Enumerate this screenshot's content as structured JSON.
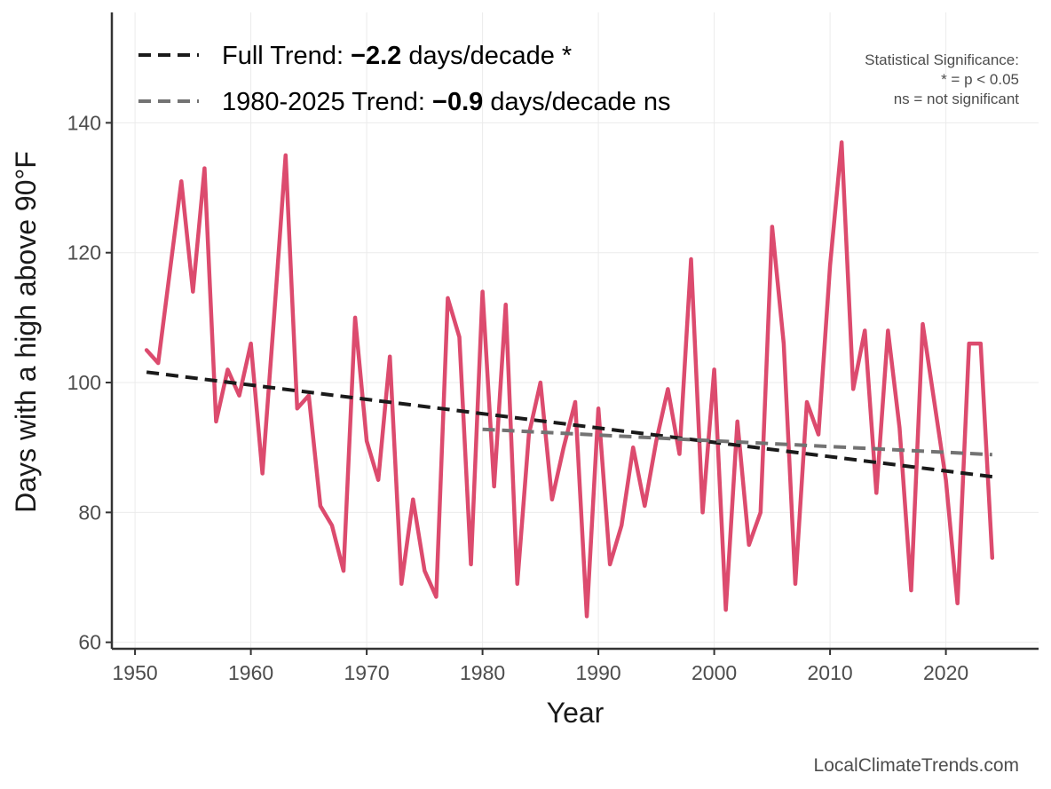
{
  "chart_data": {
    "type": "line",
    "xlabel": "Year",
    "ylabel": "Days with a high above 90°F",
    "xlim": [
      1948,
      2028
    ],
    "ylim": [
      59,
      157
    ],
    "x_ticks": [
      1950,
      1960,
      1970,
      1980,
      1990,
      2000,
      2010,
      2020
    ],
    "y_ticks": [
      60,
      80,
      100,
      120,
      140
    ],
    "grid": true,
    "legend_position": "top-left",
    "series": [
      {
        "color": "#dc4b6e",
        "x": [
          1951,
          1952,
          1953,
          1954,
          1955,
          1956,
          1957,
          1958,
          1959,
          1960,
          1961,
          1962,
          1963,
          1964,
          1965,
          1966,
          1967,
          1968,
          1969,
          1970,
          1971,
          1972,
          1973,
          1974,
          1975,
          1976,
          1977,
          1978,
          1979,
          1980,
          1981,
          1982,
          1983,
          1984,
          1985,
          1986,
          1987,
          1988,
          1989,
          1990,
          1991,
          1992,
          1993,
          1994,
          1995,
          1996,
          1997,
          1998,
          1999,
          2000,
          2001,
          2002,
          2003,
          2004,
          2005,
          2006,
          2007,
          2008,
          2009,
          2010,
          2011,
          2012,
          2013,
          2014,
          2015,
          2016,
          2017,
          2018,
          2019,
          2020,
          2021,
          2022,
          2023,
          2024
        ],
        "values": [
          105,
          103,
          117,
          131,
          114,
          133,
          94,
          102,
          98,
          106,
          86,
          110,
          135,
          96,
          98,
          81,
          78,
          71,
          110,
          91,
          85,
          104,
          69,
          82,
          71,
          67,
          113,
          107,
          72,
          114,
          84,
          112,
          69,
          92,
          100,
          82,
          90,
          97,
          64,
          96,
          72,
          78,
          90,
          81,
          91,
          99,
          89,
          119,
          80,
          102,
          65,
          94,
          75,
          80,
          124,
          106,
          69,
          97,
          92,
          118,
          137,
          99,
          108,
          83,
          108,
          93,
          68,
          109,
          97,
          85,
          66,
          106,
          106,
          73
        ]
      }
    ],
    "trend_lines": [
      {
        "name": "Full Trend",
        "color": "#1a1a1a",
        "x": [
          1951,
          2024
        ],
        "values": [
          101.6,
          85.5
        ]
      },
      {
        "name": "1980-2025 Trend",
        "color": "#737373",
        "x": [
          1980,
          2024
        ],
        "values": [
          92.8,
          88.9
        ]
      }
    ],
    "legend": [
      {
        "prefix": "Full Trend: ",
        "value": "−2.2",
        "suffix": " days/decade *",
        "color": "#1a1a1a"
      },
      {
        "prefix": "1980-2025 Trend: ",
        "value": "−0.9",
        "suffix": " days/decade ns",
        "color": "#737373"
      }
    ],
    "annotation": [
      "Statistical Significance:",
      "* = p < 0.05",
      "ns = not significant"
    ],
    "source": "LocalClimateTrends.com"
  }
}
